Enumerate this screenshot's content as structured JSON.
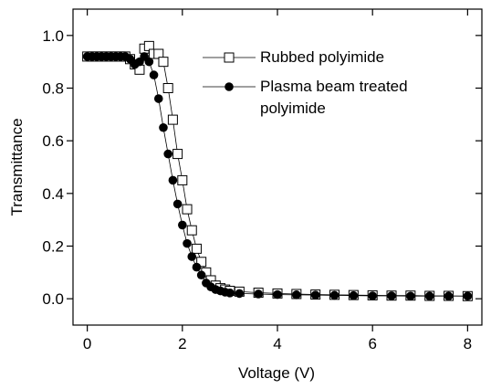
{
  "chart_data": {
    "type": "scatter",
    "xlabel": "Voltage (V)",
    "ylabel": "Transmittance",
    "xlim": [
      -0.3,
      8.3
    ],
    "xticks": [
      0,
      2,
      4,
      6,
      8
    ],
    "ylim": [
      -0.1,
      1.1
    ],
    "yticks": [
      {
        "value": 0,
        "label": "0.0"
      },
      0.2,
      0.4,
      0.6,
      0.8,
      {
        "value": 1,
        "label": "1.0"
      }
    ],
    "legend": "upper right",
    "x": [
      0,
      0.1,
      0.2,
      0.3,
      0.4,
      0.5,
      0.6,
      0.7,
      0.8,
      0.9,
      1.0,
      1.1,
      1.2,
      1.3,
      1.4,
      1.5,
      1.6,
      1.7,
      1.8,
      1.9,
      2.0,
      2.1,
      2.2,
      2.3,
      2.4,
      2.5,
      2.6,
      2.7,
      2.8,
      2.9,
      3.0,
      3.2,
      3.6,
      4.0,
      4.4,
      4.8,
      5.2,
      5.6,
      6.0,
      6.4,
      6.8,
      7.2,
      7.6,
      8.0
    ],
    "series": [
      {
        "name": "Rubbed polyimide",
        "color": "#000000",
        "marker": "open-square",
        "values": [
          0.92,
          0.92,
          0.92,
          0.92,
          0.92,
          0.92,
          0.92,
          0.92,
          0.92,
          0.91,
          0.89,
          0.87,
          0.95,
          0.96,
          0.93,
          0.93,
          0.9,
          0.8,
          0.68,
          0.55,
          0.45,
          0.34,
          0.26,
          0.19,
          0.14,
          0.1,
          0.07,
          0.05,
          0.04,
          0.035,
          0.03,
          0.027,
          0.023,
          0.02,
          0.018,
          0.016,
          0.015,
          0.014,
          0.013,
          0.012,
          0.012,
          0.011,
          0.011,
          0.01
        ]
      },
      {
        "name": "Plasma beam treated polyimide",
        "color": "#000000",
        "marker": "filled-circle",
        "values": [
          0.92,
          0.92,
          0.92,
          0.92,
          0.92,
          0.92,
          0.92,
          0.92,
          0.92,
          0.91,
          0.89,
          0.9,
          0.92,
          0.9,
          0.85,
          0.76,
          0.65,
          0.55,
          0.45,
          0.36,
          0.28,
          0.21,
          0.16,
          0.12,
          0.09,
          0.06,
          0.045,
          0.035,
          0.03,
          0.025,
          0.022,
          0.02,
          0.018,
          0.016,
          0.015,
          0.014,
          0.013,
          0.012,
          0.011,
          0.011,
          0.01,
          0.01,
          0.01,
          0.01
        ]
      }
    ]
  }
}
